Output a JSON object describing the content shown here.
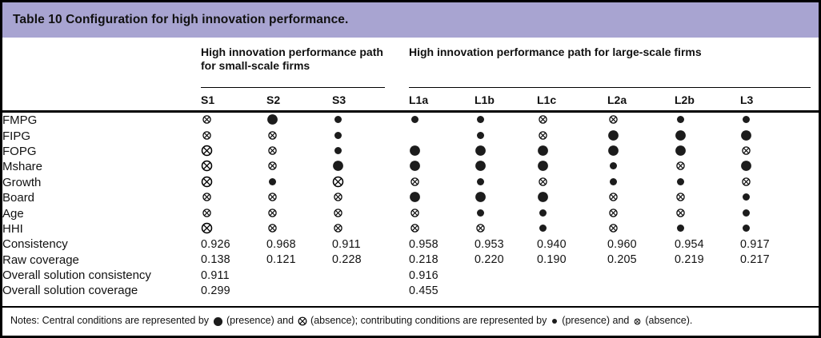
{
  "title": "Table 10 Configuration for high innovation performance.",
  "colors": {
    "title_bar_bg": "#a8a4d1",
    "border": "#000000",
    "symbol": "#1c1c1c"
  },
  "table": {
    "group_headers": [
      {
        "label": "High innovation performance path for small-scale firms",
        "span": 3
      },
      {
        "label": "High innovation performance path for large-scale firms",
        "span": 6
      }
    ],
    "columns": [
      "S1",
      "S2",
      "S3",
      "L1a",
      "L1b",
      "L1c",
      "L2a",
      "L2b",
      "L3"
    ],
    "symbols": {
      "CP": "central condition present (large filled circle)",
      "cp": "contributing condition present (small filled circle)",
      "CA": "central condition absent (large crossed circle)",
      "ca": "contributing condition absent (small crossed circle)"
    },
    "rows": [
      {
        "label": "FMPG",
        "cells": [
          "ca",
          "CP",
          "cp",
          "cp",
          "cp",
          "ca",
          "ca",
          "cp",
          "cp"
        ]
      },
      {
        "label": "FIPG",
        "cells": [
          "ca",
          "ca",
          "cp",
          "",
          "cp",
          "ca",
          "CP",
          "CP",
          "CP"
        ]
      },
      {
        "label": "FOPG",
        "cells": [
          "CA",
          "ca",
          "cp",
          "CP",
          "CP",
          "CP",
          "CP",
          "CP",
          "ca"
        ]
      },
      {
        "label": "Mshare",
        "cells": [
          "CA",
          "ca",
          "CP",
          "CP",
          "CP",
          "CP",
          "cp",
          "ca",
          "CP"
        ]
      },
      {
        "label": "Growth",
        "cells": [
          "CA",
          "cp",
          "CA",
          "ca",
          "cp",
          "ca",
          "cp",
          "cp",
          "ca"
        ]
      },
      {
        "label": "Board",
        "cells": [
          "ca",
          "ca",
          "ca",
          "CP",
          "CP",
          "CP",
          "ca",
          "ca",
          "cp"
        ]
      },
      {
        "label": "Age",
        "cells": [
          "ca",
          "ca",
          "ca",
          "ca",
          "cp",
          "cp",
          "ca",
          "ca",
          "cp"
        ]
      },
      {
        "label": "HHI",
        "cells": [
          "CA",
          "ca",
          "ca",
          "ca",
          "ca",
          "cp",
          "ca",
          "cp",
          "cp"
        ]
      },
      {
        "label": "Consistency",
        "cells": [
          "0.926",
          "0.968",
          "0.911",
          "0.958",
          "0.953",
          "0.940",
          "0.960",
          "0.954",
          "0.917"
        ]
      },
      {
        "label": "Raw coverage",
        "cells": [
          "0.138",
          "0.121",
          "0.228",
          "0.218",
          "0.220",
          "0.190",
          "0.205",
          "0.219",
          "0.217"
        ]
      },
      {
        "label": "Overall solution consistency",
        "cells": [
          "0.911",
          "",
          "",
          "0.916",
          "",
          "",
          "",
          "",
          ""
        ]
      },
      {
        "label": "Overall solution coverage",
        "cells": [
          "0.299",
          "",
          "",
          "0.455",
          "",
          "",
          "",
          "",
          ""
        ]
      }
    ]
  },
  "notes_segments": [
    {
      "text": "Notes: Central conditions are represented by "
    },
    {
      "symbol": "CP"
    },
    {
      "text": " (presence) and "
    },
    {
      "symbol": "CA"
    },
    {
      "text": " (absence); contributing conditions are represented by "
    },
    {
      "symbol": "cp"
    },
    {
      "text": " (presence) and "
    },
    {
      "symbol": "ca"
    },
    {
      "text": " (absence)."
    }
  ]
}
